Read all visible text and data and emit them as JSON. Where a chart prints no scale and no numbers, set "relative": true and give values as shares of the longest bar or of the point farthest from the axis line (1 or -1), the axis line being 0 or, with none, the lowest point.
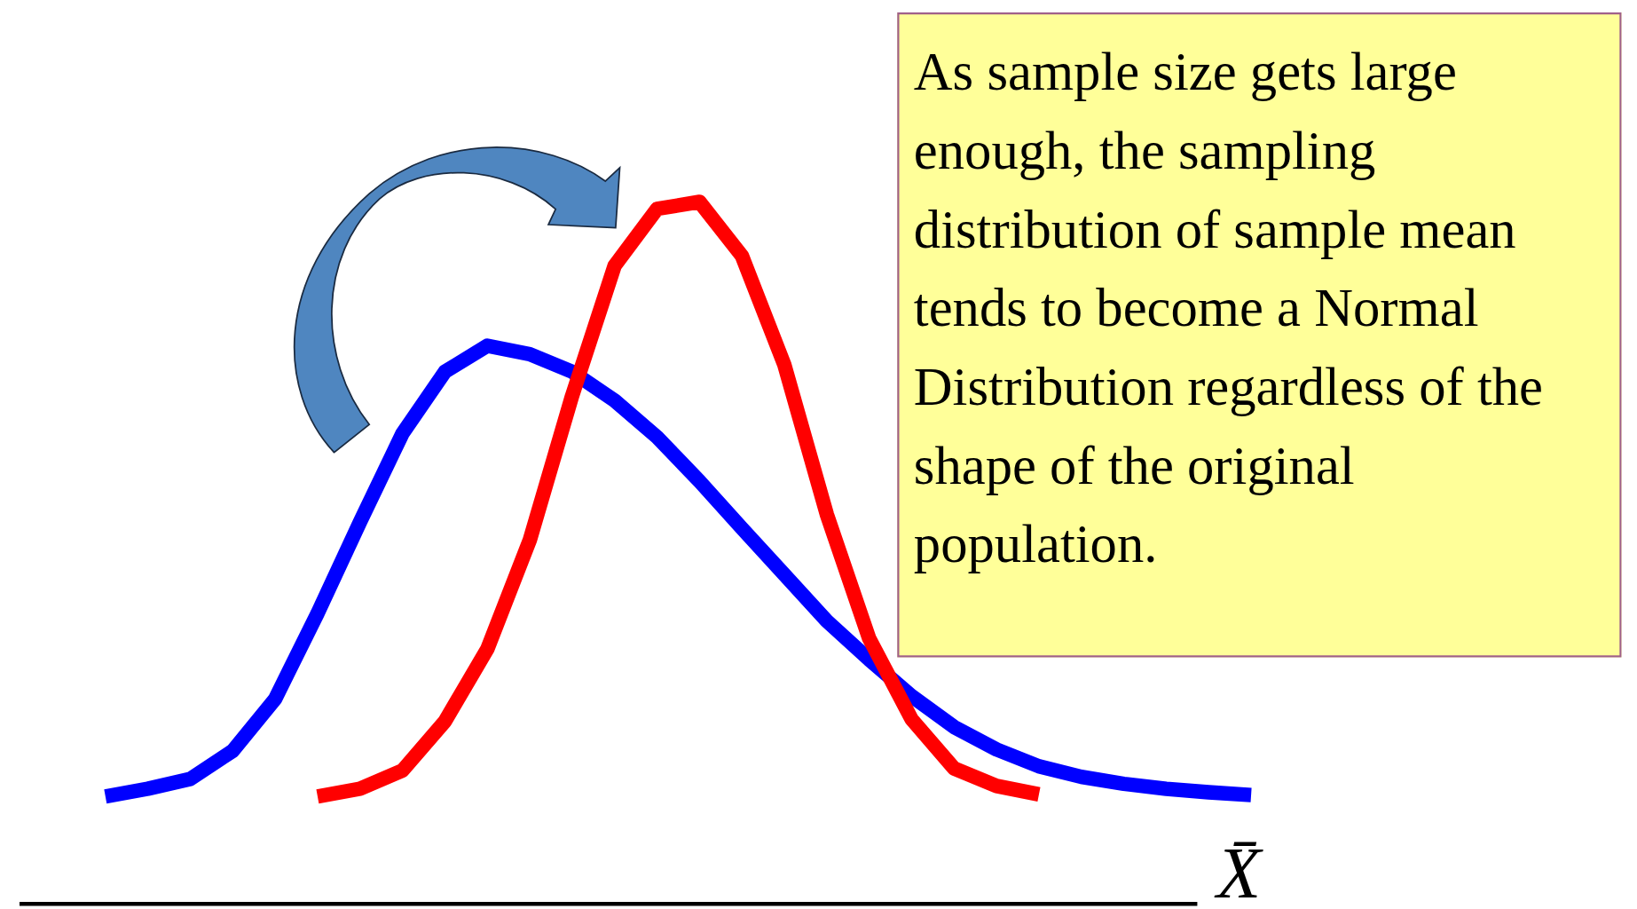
{
  "chart_data": {
    "type": "line",
    "relative": true,
    "xlabel": "X̄",
    "categories": [
      null,
      null,
      null,
      null,
      null,
      null,
      null,
      null,
      null,
      null,
      null,
      null,
      null,
      null,
      null,
      null,
      null,
      null,
      null,
      null,
      null,
      null,
      null,
      null,
      null,
      null,
      null,
      null
    ],
    "series": [
      {
        "color": "#0000ff",
        "values": [
          0.153,
          0.164,
          0.178,
          0.218,
          0.292,
          0.414,
          0.544,
          0.67,
          0.758,
          0.795,
          0.783,
          0.758,
          0.717,
          0.665,
          0.602,
          0.535,
          0.469,
          0.403,
          0.348,
          0.296,
          0.252,
          0.22,
          0.196,
          0.181,
          0.171,
          0.164,
          0.159,
          0.155
        ]
      },
      {
        "color": "#ff0000",
        "values": [
          null,
          null,
          null,
          null,
          null,
          0.153,
          0.164,
          0.19,
          0.26,
          0.363,
          0.518,
          0.724,
          0.909,
          0.99,
          1,
          0.923,
          0.768,
          0.555,
          0.378,
          0.263,
          0.193,
          0.168,
          0.156,
          null,
          null,
          null,
          null,
          null
        ]
      }
    ],
    "annotations": [
      "As sample size gets large enough, the sampling distribution of sample mean tends to become a Normal Distribution regardless of the shape of the original population."
    ]
  }
}
